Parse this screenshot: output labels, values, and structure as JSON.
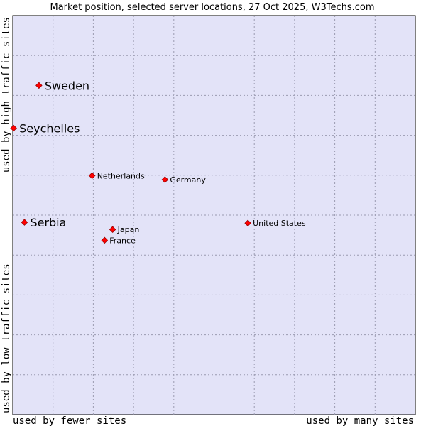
{
  "chart_data": {
    "type": "scatter",
    "title": "Market position, selected server locations, 27 Oct 2025, W3Techs.com",
    "xlabel_left": "used by fewer sites",
    "xlabel_right": "used by many sites",
    "ylabel_bottom": "used by low traffic sites",
    "ylabel_top": "used by high traffic sites",
    "xlim": [
      0,
      100
    ],
    "ylim": [
      0,
      100
    ],
    "grid": true,
    "points": [
      {
        "name": "Sweden",
        "x": 6.5,
        "y": 82.5,
        "highlight": true
      },
      {
        "name": "Seychelles",
        "x": 0.2,
        "y": 71.8,
        "highlight": true
      },
      {
        "name": "Netherlands",
        "x": 19.7,
        "y": 59.9,
        "highlight": false
      },
      {
        "name": "Germany",
        "x": 37.8,
        "y": 58.9,
        "highlight": false
      },
      {
        "name": "Serbia",
        "x": 2.9,
        "y": 48.2,
        "highlight": true
      },
      {
        "name": "Japan",
        "x": 24.8,
        "y": 46.4,
        "highlight": false
      },
      {
        "name": "France",
        "x": 22.8,
        "y": 43.7,
        "highlight": false
      },
      {
        "name": "United States",
        "x": 58.4,
        "y": 48.0,
        "highlight": false
      }
    ]
  },
  "colors": {
    "plot_bg": "#e3e3f8",
    "grid": "#9a9ab0",
    "marker": "#ff0000",
    "marker_stroke": "#990000"
  }
}
